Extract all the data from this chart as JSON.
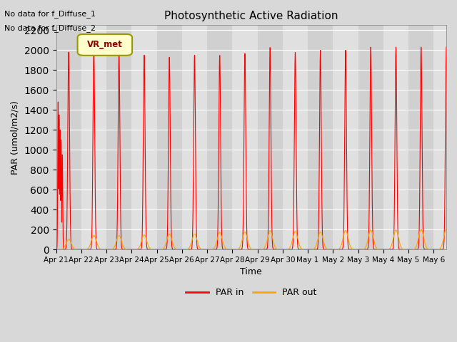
{
  "title": "Photosynthetic Active Radiation",
  "ylabel": "PAR (umol/m2/s)",
  "xlabel": "Time",
  "ylim": [
    0,
    2250
  ],
  "yticks": [
    0,
    200,
    400,
    600,
    800,
    1000,
    1200,
    1400,
    1600,
    1800,
    2000,
    2200
  ],
  "fig_bg_color": "#d8d8d8",
  "plot_bg_color": "#e8e8e8",
  "grid_color": "white",
  "par_in_color": "red",
  "par_out_color": "orange",
  "annotations": [
    "No data for f_Diffuse_1",
    "No data for f_Diffuse_2"
  ],
  "legend_label_box": "VR_met",
  "legend_box_color": "#ffffcc",
  "legend_box_edge": "#999900",
  "x_tick_labels": [
    "Apr 21",
    "Apr 22",
    "Apr 23",
    "Apr 24",
    "Apr 25",
    "Apr 26",
    "Apr 27",
    "Apr 28",
    "Apr 29",
    "Apr 30",
    "May 1",
    "May 2",
    "May 3",
    "May 4",
    "May 5",
    "May 6"
  ],
  "par_in_peaks": [
    1980,
    2030,
    1980,
    1950,
    1930,
    1950,
    1950,
    1970,
    2030,
    1980,
    2000,
    2000,
    2030,
    2030,
    2030
  ],
  "par_out_peaks": [
    100,
    140,
    140,
    145,
    155,
    155,
    170,
    175,
    185,
    180,
    175,
    190,
    195,
    195,
    200
  ],
  "sigma_in": 0.035,
  "sigma_out": 0.1,
  "total_days": 15.5,
  "points_per_day": 200
}
